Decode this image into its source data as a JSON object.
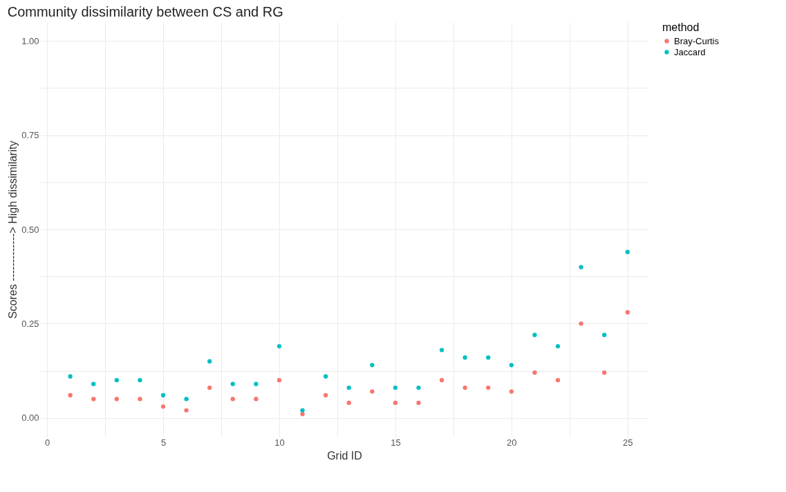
{
  "chart_data": {
    "type": "scatter",
    "title": "Community dissimilarity between CS and RG",
    "xlabel": "Grid ID",
    "ylabel": "Scores -------------> High dissimilarity",
    "legend_title": "method",
    "x": [
      1,
      2,
      3,
      4,
      5,
      6,
      7,
      8,
      9,
      10,
      11,
      12,
      13,
      14,
      15,
      16,
      17,
      18,
      19,
      20,
      21,
      22,
      23,
      24,
      25
    ],
    "series": [
      {
        "name": "Bray-Curtis",
        "color": "#f8766d",
        "values": [
          0.06,
          0.05,
          0.05,
          0.05,
          0.03,
          0.02,
          0.08,
          0.05,
          0.05,
          0.1,
          0.01,
          0.06,
          0.04,
          0.07,
          0.04,
          0.04,
          0.1,
          0.08,
          0.08,
          0.07,
          0.12,
          0.1,
          0.25,
          0.12,
          0.28
        ]
      },
      {
        "name": "Jaccard",
        "color": "#00bfc4",
        "values": [
          0.11,
          0.09,
          0.1,
          0.1,
          0.06,
          0.05,
          0.15,
          0.09,
          0.09,
          0.19,
          0.02,
          0.11,
          0.08,
          0.14,
          0.08,
          0.08,
          0.18,
          0.16,
          0.16,
          0.14,
          0.22,
          0.19,
          0.4,
          0.22,
          0.44
        ]
      }
    ],
    "xlim": [
      -0.3,
      25.9
    ],
    "ylim": [
      -0.05,
      1.05
    ],
    "xticks": [
      0,
      {
        "value": 2.5,
        "label": null
      },
      5,
      {
        "value": 7.5,
        "label": null
      },
      10,
      {
        "value": 12.5,
        "label": null
      },
      15,
      {
        "value": 17.5,
        "label": null
      },
      20,
      {
        "value": 22.5,
        "label": null
      },
      25
    ],
    "yticks": [
      {
        "value": 0,
        "label": "0.00"
      },
      {
        "value": 0.125,
        "label": null
      },
      {
        "value": 0.25,
        "label": "0.25"
      },
      {
        "value": 0.375,
        "label": null
      },
      {
        "value": 0.5,
        "label": "0.50"
      },
      {
        "value": 0.625,
        "label": null
      },
      {
        "value": 0.75,
        "label": "0.75"
      },
      {
        "value": 0.875,
        "label": null
      },
      {
        "value": 1,
        "label": "1.00"
      }
    ],
    "grid": true,
    "legend": "right",
    "marker": "circle"
  }
}
